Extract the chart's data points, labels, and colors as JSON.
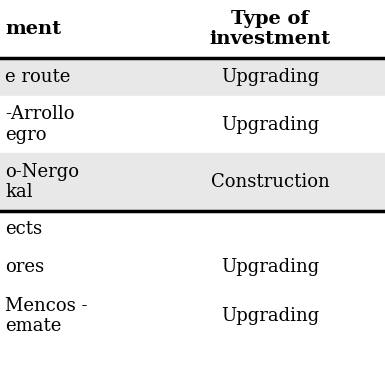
{
  "col1_header": "ment",
  "col2_header": "Type of\ninvestment",
  "rows": [
    {
      "col1": "e route",
      "col2": "Upgrading",
      "bg": "#e8e8e8"
    },
    {
      "col1": "-Arrollo\negro",
      "col2": "Upgrading",
      "bg": "#ffffff"
    },
    {
      "col1": "o-Nergo\nkal",
      "col2": "Construction",
      "bg": "#e8e8e8"
    },
    {
      "col1": "ects",
      "col2": "",
      "bg": "#ffffff"
    },
    {
      "col1": "ores",
      "col2": "Upgrading",
      "bg": "#ffffff"
    },
    {
      "col1": "Mencos -\nemate",
      "col2": "Upgrading",
      "bg": "#ffffff"
    }
  ],
  "header_bg": "#ffffff",
  "line_color": "#000000",
  "text_color": "#000000",
  "font_size": 13,
  "header_font_size": 14,
  "col_split": 155,
  "fig_w": 3.85,
  "fig_h": 3.85,
  "dpi": 100
}
